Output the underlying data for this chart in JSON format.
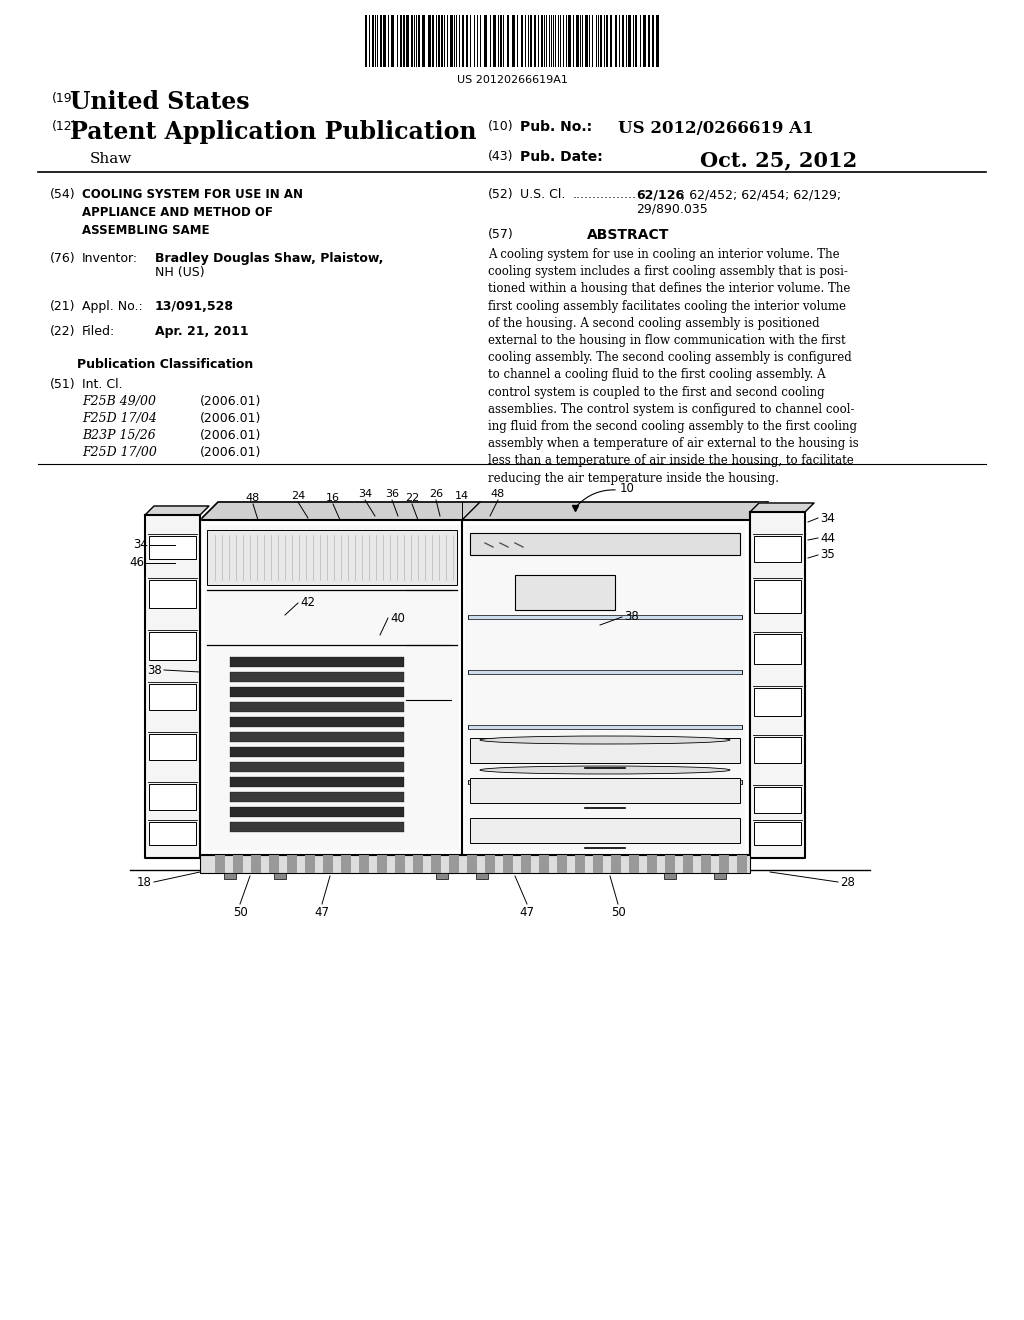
{
  "background_color": "#ffffff",
  "barcode_text": "US 20120266619A1",
  "country": "United States",
  "pub_type": "Patent Application Publication",
  "pub_no_val": "US 2012/0266619 A1",
  "pub_date_val": "Oct. 25, 2012",
  "applicant": "Shaw",
  "title_text": "COOLING SYSTEM FOR USE IN AN\nAPPLIANCE AND METHOD OF\nASSEMBLING SAME",
  "inventor_name": "Bradley Douglas Shaw",
  "appl_no": "13/091,528",
  "filed_date": "Apr. 21, 2011",
  "classifications": [
    [
      "F25B 49/00",
      "(2006.01)"
    ],
    [
      "F25D 17/04",
      "(2006.01)"
    ],
    [
      "B23P 15/26",
      "(2006.01)"
    ],
    [
      "F25D 17/00",
      "(2006.01)"
    ]
  ],
  "abstract_lines": [
    "A cooling system for use in cooling an interior volume. The",
    "cooling system includes a first cooling assembly that is posi-",
    "tioned within a housing that defines the interior volume. The",
    "first cooling assembly facilitates cooling the interior volume",
    "of the housing. A second cooling assembly is positioned",
    "external to the housing in flow communication with the first",
    "cooling assembly. The second cooling assembly is configured",
    "to channel a cooling fluid to the first cooling assembly. A",
    "control system is coupled to the first and second cooling",
    "assemblies. The control system is configured to channel cool-",
    "ing fluid from the second cooling assembly to the first cooling",
    "assembly when a temperature of air external to the housing is",
    "less than a temperature of air inside the housing, to facilitate",
    "reducing the air temperature inside the housing."
  ]
}
